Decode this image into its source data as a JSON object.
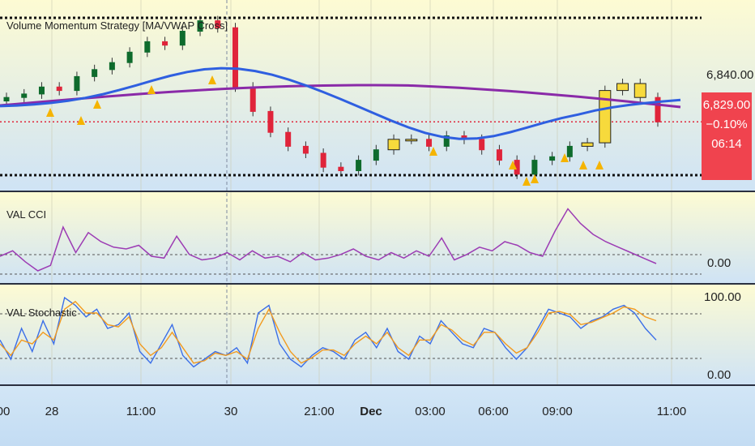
{
  "panes": {
    "price": {
      "title": "Volume Momentum Strategy [MA/VWAP Cross]"
    },
    "cci": {
      "title": "VAL CCI"
    },
    "stoch": {
      "title": "VAL Stochastic"
    }
  },
  "price_scale": {
    "level_label": "6,840.00",
    "last_price": "6,829.00",
    "change": "−0.10%",
    "countdown": "06:14"
  },
  "cci_scale": {
    "zero_label": "0.00"
  },
  "stoch_scale": {
    "top_label": "100.00",
    "bottom_label": "0.00"
  },
  "time_axis": {
    "labels": [
      {
        "text": "00",
        "bold": false
      },
      {
        "text": "28",
        "bold": false
      },
      {
        "text": "11:00",
        "bold": false
      },
      {
        "text": "30",
        "bold": false
      },
      {
        "text": "21:00",
        "bold": false
      },
      {
        "text": "Dec",
        "bold": true
      },
      {
        "text": "03:00",
        "bold": false
      },
      {
        "text": "06:00",
        "bold": false
      },
      {
        "text": "09:00",
        "bold": false
      },
      {
        "text": "11:00",
        "bold": false
      }
    ]
  },
  "colors": {
    "bull_candle": "#0e6b2c",
    "bear_candle": "#e0243a",
    "highlight_candle": "#f7da3c",
    "vwap_line": "#8a2aa8",
    "ma_line": "#2f5fe0",
    "signal_arrow": "#f5b400",
    "cci_line": "#9c3cb4",
    "stoch_k": "#3a6ee8",
    "stoch_d": "#f29a1e",
    "price_box": "#f0434e"
  },
  "chart_data": [
    {
      "type": "candlestick",
      "pane": "price",
      "title": "Volume Momentum Strategy [MA/VWAP Cross]",
      "y_tick_labels": [
        "6,840.00"
      ],
      "last_price": 6829.0,
      "change_percent": -0.1,
      "candles_close_approx": [
        6836,
        6837,
        6839,
        6838,
        6842,
        6844,
        6846,
        6849,
        6852,
        6851,
        6855,
        6858,
        6856,
        6839,
        6832,
        6826,
        6822,
        6820,
        6816,
        6815,
        6818,
        6821,
        6824,
        6824,
        6822,
        6825,
        6824,
        6821,
        6818,
        6814,
        6818,
        6819,
        6822,
        6823,
        6838,
        6840,
        6836,
        6829
      ],
      "series": [
        {
          "name": "VWAP",
          "color": "#8a2aa8"
        },
        {
          "name": "MA",
          "color": "#2f5fe0"
        }
      ]
    },
    {
      "type": "line",
      "pane": "cci",
      "title": "VAL CCI",
      "y_tick_labels": [
        "0.00"
      ],
      "values": [
        20,
        35,
        5,
        -20,
        -5,
        100,
        30,
        85,
        60,
        45,
        40,
        50,
        20,
        15,
        75,
        25,
        10,
        15,
        30,
        10,
        35,
        15,
        20,
        5,
        30,
        10,
        15,
        25,
        40,
        20,
        10,
        30,
        15,
        35,
        20,
        70,
        10,
        25,
        45,
        35,
        60,
        50,
        30,
        20,
        90,
        150,
        110,
        80,
        60,
        45,
        30,
        15,
        0
      ]
    },
    {
      "type": "line",
      "pane": "stoch",
      "title": "VAL Stochastic",
      "y_tick_labels": [
        "100.00",
        "0.00"
      ],
      "ylim": [
        0,
        100
      ],
      "series": [
        {
          "name": "%K",
          "color": "#3a6ee8",
          "values": [
            45,
            20,
            60,
            30,
            70,
            40,
            100,
            90,
            75,
            85,
            60,
            65,
            80,
            30,
            15,
            40,
            65,
            25,
            10,
            20,
            30,
            25,
            35,
            15,
            80,
            90,
            40,
            20,
            10,
            25,
            35,
            30,
            20,
            45,
            55,
            35,
            60,
            30,
            20,
            50,
            40,
            70,
            55,
            40,
            35,
            60,
            55,
            35,
            20,
            35,
            60,
            85,
            80,
            75,
            60,
            70,
            75,
            85,
            90,
            80,
            60,
            45
          ]
        },
        {
          "name": "%D",
          "color": "#f29a1e",
          "values": [
            40,
            25,
            45,
            40,
            55,
            45,
            85,
            95,
            80,
            80,
            65,
            62,
            75,
            40,
            25,
            35,
            55,
            35,
            15,
            18,
            28,
            25,
            30,
            20,
            60,
            85,
            55,
            30,
            15,
            22,
            32,
            32,
            25,
            40,
            50,
            40,
            55,
            35,
            25,
            45,
            45,
            65,
            58,
            45,
            38,
            55,
            55,
            40,
            28,
            35,
            55,
            80,
            82,
            78,
            65,
            68,
            74,
            80,
            88,
            85,
            75,
            70
          ]
        }
      ]
    }
  ]
}
